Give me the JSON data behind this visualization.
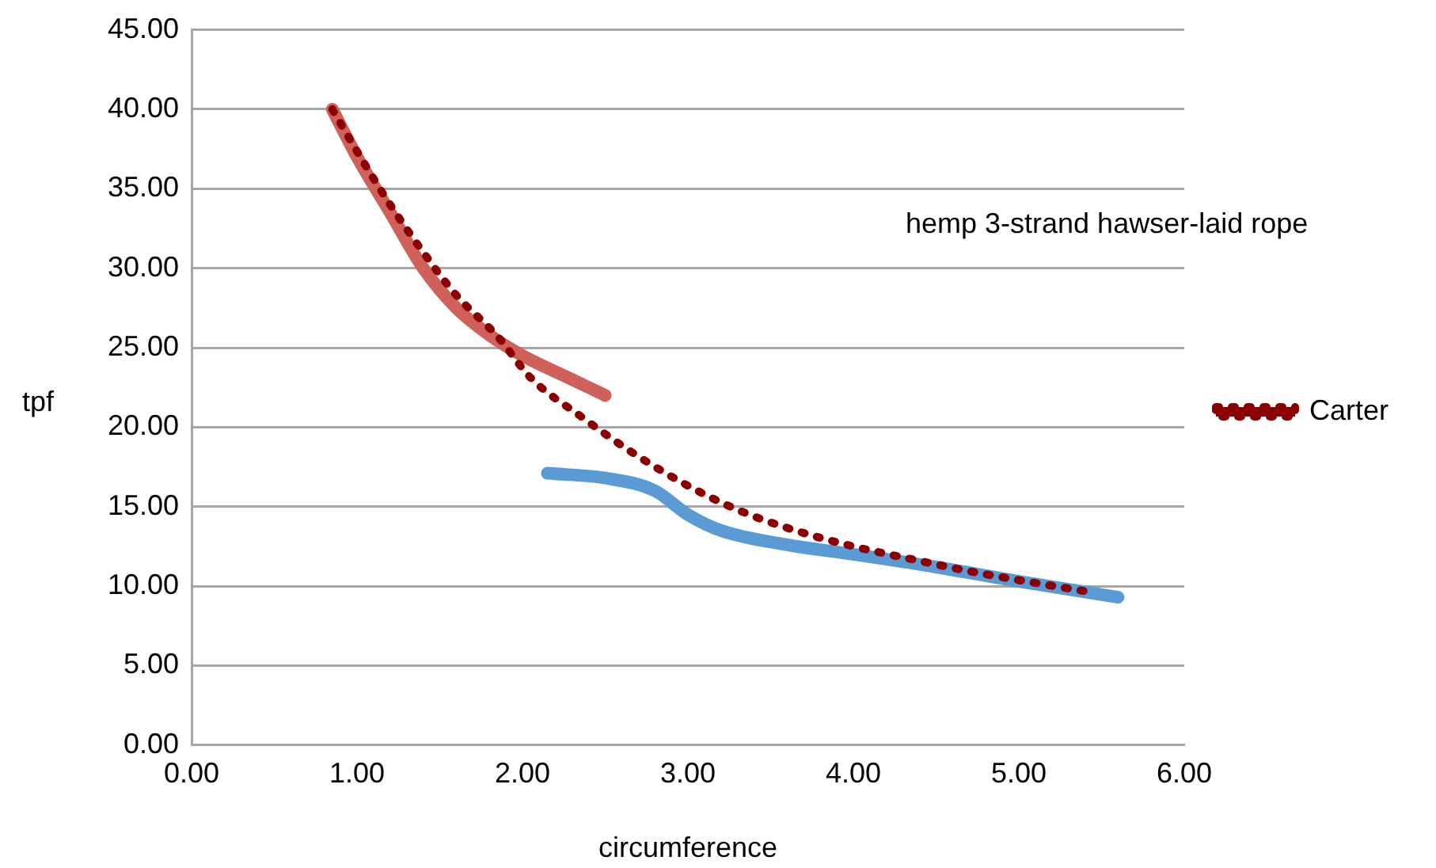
{
  "chart_data": {
    "type": "line",
    "xlabel": "circumference",
    "ylabel": "tpf",
    "annotations": [
      "hemp 3-strand hawser-laid rope"
    ],
    "xlim": [
      0,
      6
    ],
    "xticks": [
      {
        "value": 0,
        "label": "0.00"
      },
      {
        "value": 1,
        "label": "1.00"
      },
      {
        "value": 2,
        "label": "2.00"
      },
      {
        "value": 3,
        "label": "3.00"
      },
      {
        "value": 4,
        "label": "4.00"
      },
      {
        "value": 5,
        "label": "5.00"
      },
      {
        "value": 6,
        "label": "6.00"
      }
    ],
    "ylim": [
      0,
      45
    ],
    "yticks": [
      {
        "value": 0,
        "label": "0.00"
      },
      {
        "value": 5,
        "label": "5.00"
      },
      {
        "value": 10,
        "label": "10.00"
      },
      {
        "value": 15,
        "label": "15.00"
      },
      {
        "value": 20,
        "label": "20.00"
      },
      {
        "value": 25,
        "label": "25.00"
      },
      {
        "value": 30,
        "label": "30.00"
      },
      {
        "value": 35,
        "label": "35.00"
      },
      {
        "value": 40,
        "label": "40.00"
      },
      {
        "value": 45,
        "label": "45.00"
      }
    ],
    "grid": "y",
    "legend": "right",
    "marker": "none",
    "series": [
      {
        "color": "#5b9bd5",
        "x": [
          2.15,
          2.5,
          2.8,
          3.0,
          3.2,
          3.6,
          4.0,
          4.5,
          5.0,
          5.6
        ],
        "values": [
          17.1,
          16.8,
          16.0,
          14.5,
          13.5,
          12.6,
          12.0,
          11.2,
          10.3,
          9.3
        ]
      },
      {
        "color": "#d0605a",
        "x": [
          0.85,
          1.0,
          1.2,
          1.4,
          1.6,
          1.8,
          2.0,
          2.3,
          2.5
        ],
        "values": [
          40,
          37,
          33.5,
          30,
          27.5,
          25.8,
          24.5,
          23,
          22
        ]
      },
      {
        "name": "Carter",
        "color": "#8b0000",
        "line_style": "dotted",
        "x": [
          0.85,
          1.02,
          1.2,
          1.4,
          1.6,
          1.85,
          2.05,
          2.35,
          2.65,
          2.95,
          3.3,
          3.65,
          4.0,
          4.35,
          4.72,
          5.1,
          5.45
        ],
        "values": [
          40,
          37,
          34,
          31,
          28.3,
          25.7,
          23.1,
          20.7,
          18.5,
          16.6,
          14.8,
          13.5,
          12.5,
          11.7,
          10.9,
          10.2,
          9.6
        ]
      }
    ]
  }
}
